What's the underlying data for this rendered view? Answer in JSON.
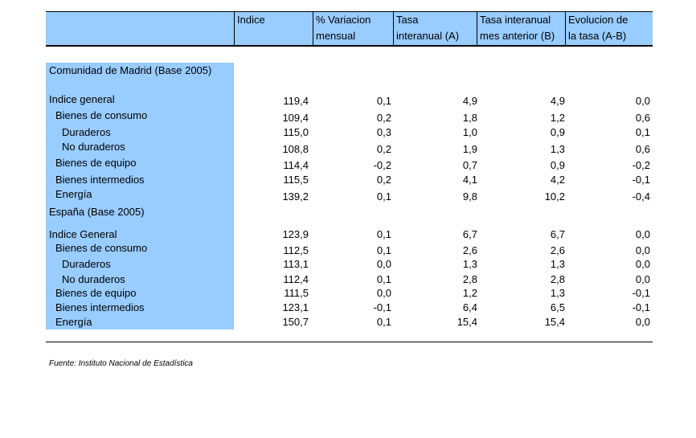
{
  "header": {
    "col1_label": "",
    "col2_label": "Indice",
    "col3_line1": "% Variacion",
    "col3_line2": "mensual",
    "col4_line1": "Tasa",
    "col4_line2": "interanual (A)",
    "col5_line1": "Tasa interanual",
    "col5_line2": "mes anterior (B)",
    "col6_line1": "Evolucion de",
    "col6_line2": "la tasa (A-B)"
  },
  "sections": [
    {
      "title": "Comunidad de Madrid (Base 2005)",
      "rows": [
        {
          "label": "Indice general",
          "indent": 0,
          "values": [
            "119,4",
            "0,1",
            "4,9",
            "4,9",
            "0,0"
          ]
        },
        {
          "label": "Bienes de consumo",
          "indent": 1,
          "values": [
            "109,4",
            "0,2",
            "1,8",
            "1,2",
            "0,6"
          ]
        },
        {
          "label": "Duraderos",
          "indent": 2,
          "values": [
            "115,0",
            "0,3",
            "1,0",
            "0,9",
            "0,1"
          ]
        },
        {
          "label": "No duraderos",
          "indent": 2,
          "values": [
            "108,8",
            "0,2",
            "1,9",
            "1,3",
            "0,6"
          ]
        },
        {
          "label": "Bienes de equipo",
          "indent": 1,
          "values": [
            "114,4",
            "-0,2",
            "0,7",
            "0,9",
            "-0,2"
          ]
        },
        {
          "label": "Bienes intermedios",
          "indent": 1,
          "values": [
            "115,5",
            "0,2",
            "4,1",
            "4,2",
            "-0,1"
          ]
        },
        {
          "label": "Energía",
          "indent": 1,
          "values": [
            "139,2",
            "0,1",
            "9,8",
            "10,2",
            "-0,4"
          ]
        }
      ]
    },
    {
      "title": "España (Base 2005)",
      "rows": [
        {
          "label": "Indice General",
          "indent": 0,
          "values": [
            "123,9",
            "0,1",
            "6,7",
            "6,7",
            "0,0"
          ]
        },
        {
          "label": "Bienes de consumo",
          "indent": 1,
          "values": [
            "112,5",
            "0,1",
            "2,6",
            "2,6",
            "0,0"
          ]
        },
        {
          "label": "Duraderos",
          "indent": 2,
          "values": [
            "113,1",
            "0,0",
            "1,3",
            "1,3",
            "0,0"
          ]
        },
        {
          "label": "No duraderos",
          "indent": 2,
          "values": [
            "112,4",
            "0,1",
            "2,8",
            "2,8",
            "0,0"
          ]
        },
        {
          "label": "Bienes de equipo",
          "indent": 1,
          "values": [
            "111,5",
            "0,0",
            "1,2",
            "1,3",
            "-0,1"
          ]
        },
        {
          "label": "Bienes intermedios",
          "indent": 1,
          "values": [
            "123,1",
            "-0,1",
            "6,4",
            "6,5",
            "-0,1"
          ]
        },
        {
          "label": "Energía",
          "indent": 1,
          "values": [
            "150,7",
            "0,1",
            "15,4",
            "15,4",
            "0,0"
          ]
        }
      ]
    }
  ],
  "source": "Fuente: Instituto Nacional de Estadística",
  "colors": {
    "header_bg": "#99ccff",
    "label_bg": "#99ccff",
    "text": "#000000"
  }
}
